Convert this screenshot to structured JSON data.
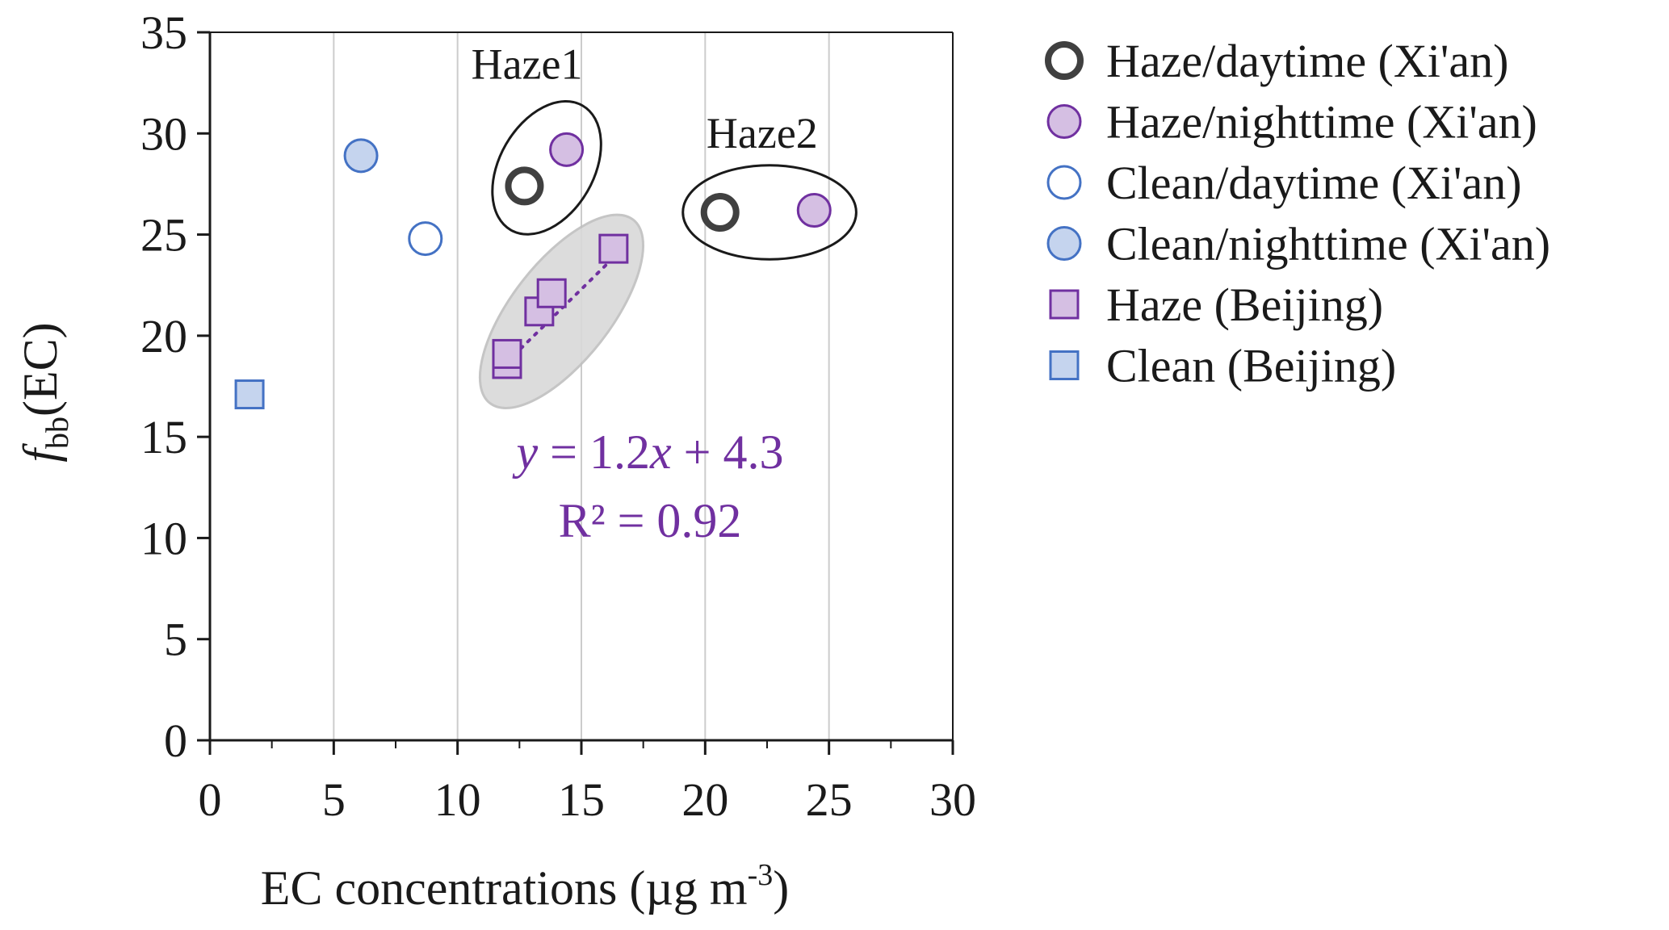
{
  "chart_data": {
    "type": "scatter",
    "xlabel": "EC concentrations (µg m",
    "xlabel_sup": "-3",
    "xlabel_close": ")",
    "ylabel_italic": "f",
    "ylabel_sub": "bb",
    "ylabel_rest": "(EC)",
    "xlim": [
      0,
      30
    ],
    "ylim": [
      0,
      35
    ],
    "x_ticks": [
      0,
      5,
      10,
      15,
      20,
      25,
      30
    ],
    "y_ticks": [
      0,
      5,
      10,
      15,
      20,
      25,
      30,
      35
    ],
    "vertical_grid": true,
    "legend_position": "right",
    "series": [
      {
        "name": "Haze/daytime (Xi'an)",
        "marker": "circle",
        "fill": "#ffffff",
        "stroke": "#404040",
        "thick": true,
        "points": [
          {
            "x": 12.7,
            "y": 27.4
          },
          {
            "x": 20.6,
            "y": 26.1
          }
        ]
      },
      {
        "name": "Haze/nighttime (Xi'an)",
        "marker": "circle",
        "fill": "#d5bfe3",
        "stroke": "#7030a0",
        "thick": false,
        "points": [
          {
            "x": 14.4,
            "y": 29.2
          },
          {
            "x": 24.4,
            "y": 26.2
          }
        ]
      },
      {
        "name": "Clean/daytime (Xi'an)",
        "marker": "circle",
        "fill": "#ffffff",
        "stroke": "#4472c4",
        "thick": false,
        "points": [
          {
            "x": 8.7,
            "y": 24.8
          }
        ]
      },
      {
        "name": "Clean/nighttime (Xi'an)",
        "marker": "circle",
        "fill": "#c5d4ee",
        "stroke": "#4472c4",
        "thick": false,
        "points": [
          {
            "x": 6.1,
            "y": 28.9
          }
        ]
      },
      {
        "name": "Haze (Beijing)",
        "marker": "square",
        "fill": "#d5bfe3",
        "stroke": "#7030a0",
        "thick": false,
        "points": [
          {
            "x": 12.0,
            "y": 18.6
          },
          {
            "x": 12.0,
            "y": 19.1
          },
          {
            "x": 13.3,
            "y": 21.2
          },
          {
            "x": 13.8,
            "y": 22.1
          },
          {
            "x": 16.3,
            "y": 24.3
          }
        ]
      },
      {
        "name": "Clean (Beijing)",
        "marker": "square",
        "fill": "#c5d4ee",
        "stroke": "#4472c4",
        "thick": false,
        "points": [
          {
            "x": 1.6,
            "y": 17.1
          }
        ]
      }
    ],
    "trendline": {
      "slope": 1.2,
      "intercept": 4.3,
      "x_range": [
        12.0,
        16.3
      ],
      "color": "#7030a0"
    },
    "equation": {
      "y": "y",
      "eq1": " = 1.2",
      "x": "x",
      "eq2": " + 4.3",
      "r2": "R² = 0.92"
    },
    "annotations": [
      {
        "label": "Haze1",
        "ellipse": {
          "cx": 13.6,
          "cy": 28.3,
          "rx": 1.9,
          "ry": 2.9,
          "angle": 30
        },
        "label_pos": {
          "x": 12.8,
          "y": 32.7
        }
      },
      {
        "label": "Haze2",
        "ellipse": {
          "cx": 22.6,
          "cy": 26.1,
          "rx": 3.5,
          "ry": 1.9,
          "angle": 0
        },
        "label_pos": {
          "x": 22.3,
          "y": 29.3
        }
      }
    ],
    "highlight_region": {
      "cx": 14.2,
      "cy": 21.2,
      "rx": 2.0,
      "ry": 4.7,
      "angle": 38,
      "fill": "#d9d9d9",
      "stroke": "#bfbfbf"
    }
  }
}
